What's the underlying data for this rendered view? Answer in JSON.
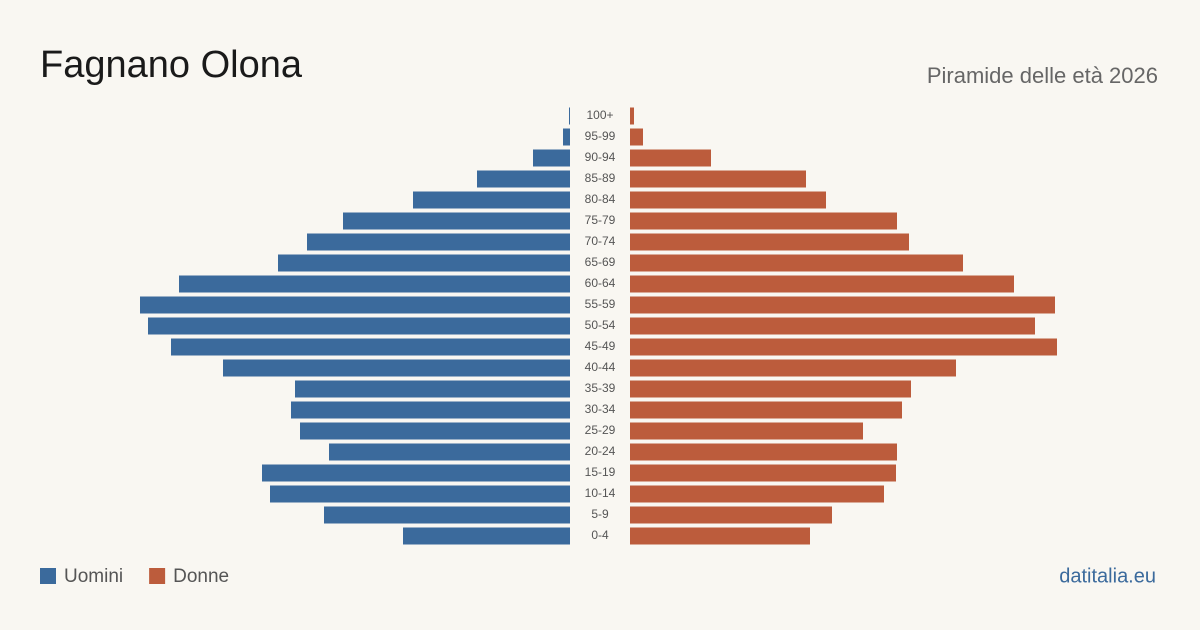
{
  "chart_data": {
    "type": "pyramid",
    "title": "Fagnano Olona",
    "subtitle": "Piramide delle età 2026",
    "source": "datitalia.eu",
    "categories": [
      "100+",
      "95-99",
      "90-94",
      "85-89",
      "80-84",
      "75-79",
      "70-74",
      "65-69",
      "60-64",
      "55-59",
      "50-54",
      "45-49",
      "40-44",
      "35-39",
      "30-34",
      "25-29",
      "20-24",
      "15-19",
      "10-14",
      "5-9",
      "0-4"
    ],
    "series": [
      {
        "name": "Uomini",
        "color": "#3b6a9c",
        "values": [
          1,
          7,
          37,
          93,
          157,
          227,
          263,
          292,
          391,
          430,
          422,
          399,
          347,
          275,
          279,
          270,
          241,
          308,
          300,
          246,
          167
        ]
      },
      {
        "name": "Donne",
        "color": "#bc5c3c",
        "values": [
          4,
          13,
          81,
          176,
          196,
          267,
          279,
          333,
          384,
          425,
          405,
          427,
          326,
          281,
          272,
          233,
          267,
          266,
          254,
          202,
          180
        ]
      }
    ]
  }
}
